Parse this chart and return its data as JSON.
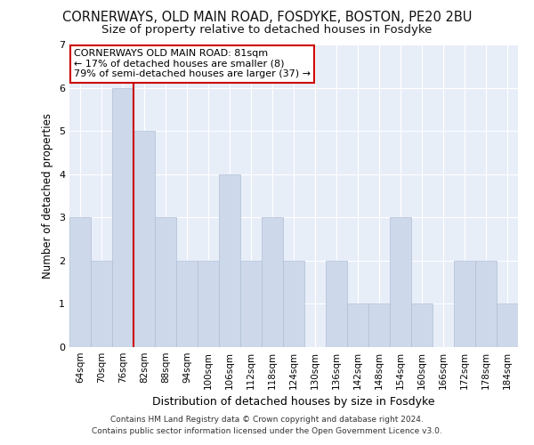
{
  "title": "CORNERWAYS, OLD MAIN ROAD, FOSDYKE, BOSTON, PE20 2BU",
  "subtitle": "Size of property relative to detached houses in Fosdyke",
  "xlabel": "Distribution of detached houses by size in Fosdyke",
  "ylabel": "Number of detached properties",
  "categories": [
    "64sqm",
    "70sqm",
    "76sqm",
    "82sqm",
    "88sqm",
    "94sqm",
    "100sqm",
    "106sqm",
    "112sqm",
    "118sqm",
    "124sqm",
    "130sqm",
    "136sqm",
    "142sqm",
    "148sqm",
    "154sqm",
    "160sqm",
    "166sqm",
    "172sqm",
    "178sqm",
    "184sqm"
  ],
  "values": [
    3,
    2,
    6,
    5,
    3,
    2,
    2,
    4,
    2,
    3,
    2,
    0,
    2,
    1,
    1,
    3,
    1,
    0,
    2,
    2,
    1
  ],
  "bar_color": "#cdd8ea",
  "bar_edge_color": "#b0bfd6",
  "ref_line_index": 2,
  "ref_line_color": "#cc0000",
  "annotation_title": "CORNERWAYS OLD MAIN ROAD: 81sqm",
  "annotation_line1": "← 17% of detached houses are smaller (8)",
  "annotation_line2": "79% of semi-detached houses are larger (37) →",
  "annotation_box_color": "#ffffff",
  "annotation_box_edge": "#cc0000",
  "ylim": [
    0,
    7
  ],
  "yticks": [
    0,
    1,
    2,
    3,
    4,
    5,
    6,
    7
  ],
  "footnote1": "Contains HM Land Registry data © Crown copyright and database right 2024.",
  "footnote2": "Contains public sector information licensed under the Open Government Licence v3.0.",
  "bg_color": "#e8eef8",
  "title_fontsize": 10.5,
  "subtitle_fontsize": 9.5,
  "xlabel_fontsize": 9,
  "ylabel_fontsize": 8.5,
  "tick_fontsize": 7.5,
  "annotation_fontsize": 8,
  "footnote_fontsize": 6.5
}
